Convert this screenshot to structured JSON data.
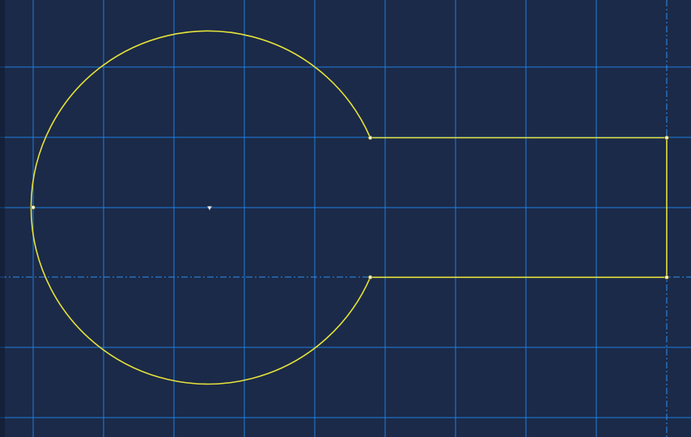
{
  "viewport": {
    "title": "",
    "background_color": "#1b2a48"
  },
  "colors": {
    "grid_line": "#1f7fe0",
    "construction_line": "#2f8ff5",
    "profile_line": "#e6e23a",
    "vertex": "#f4f4d2",
    "center_point": "#ffffff",
    "edge_shadow": "#0e1830"
  },
  "grid": {
    "visible": true,
    "major_style": "solid"
  },
  "construction_lines": {
    "style": "dash-dot"
  },
  "sketch": {
    "profile": "keyhole",
    "segments": [
      {
        "type": "arc",
        "name": "keyhole-arc"
      },
      {
        "type": "line",
        "name": "slot-top-edge"
      },
      {
        "type": "line",
        "name": "slot-right-edge"
      },
      {
        "type": "line",
        "name": "slot-bottom-edge"
      }
    ],
    "vertices": [
      {
        "name": "vertex-arc-top-end"
      },
      {
        "name": "vertex-arc-bottom-end"
      },
      {
        "name": "vertex-slot-top-right"
      },
      {
        "name": "vertex-slot-bottom-right"
      },
      {
        "name": "vertex-arc-left-quadrant"
      }
    ],
    "center_marker": {
      "name": "arc-center-point",
      "icon": "center-point-icon"
    }
  }
}
